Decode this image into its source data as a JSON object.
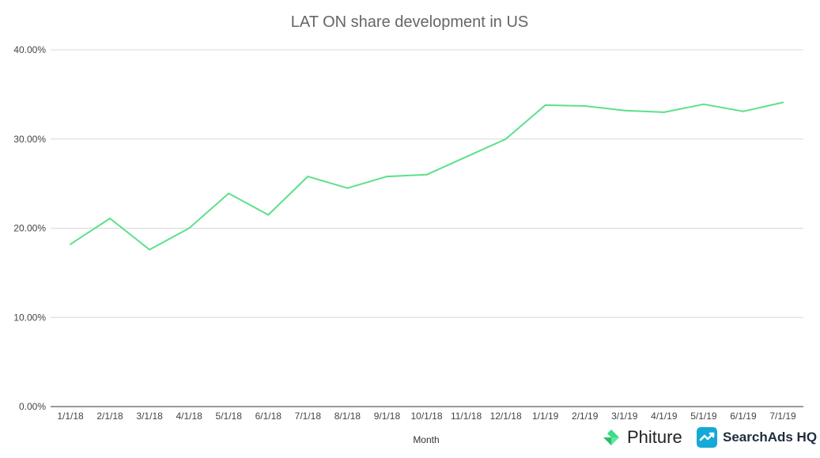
{
  "chart_data": {
    "type": "line",
    "title": "LAT ON share development in US",
    "xlabel": "Month",
    "ylabel": "",
    "categories": [
      "1/1/18",
      "2/1/18",
      "3/1/18",
      "4/1/18",
      "5/1/18",
      "6/1/18",
      "7/1/18",
      "8/1/18",
      "9/1/18",
      "10/1/18",
      "11/1/18",
      "12/1/18",
      "1/1/19",
      "2/1/19",
      "3/1/19",
      "4/1/19",
      "5/1/19",
      "6/1/19",
      "7/1/19"
    ],
    "series": [
      {
        "values": [
          18.2,
          21.1,
          17.6,
          20.0,
          23.9,
          21.5,
          25.8,
          24.5,
          25.8,
          26.0,
          28.0,
          30.0,
          33.8,
          33.7,
          33.2,
          33.0,
          33.9,
          33.1,
          34.1
        ],
        "color": "#5ce08a"
      }
    ],
    "ylim": [
      0,
      40
    ],
    "yticks": [
      0,
      10,
      20,
      30,
      40
    ],
    "ytick_labels": [
      "0.00%",
      "10.00%",
      "20.00%",
      "30.00%",
      "40.00%"
    ],
    "grid": true,
    "legend": "none"
  },
  "branding": {
    "phiture_label": "Phiture",
    "phiture_icon": "phiture-diamond-icon",
    "phiture_color": "#3ddc84",
    "searchads_label": "SearchAds HQ",
    "searchads_icon": "searchads-chart-icon",
    "searchads_color": "#14a9d6"
  }
}
